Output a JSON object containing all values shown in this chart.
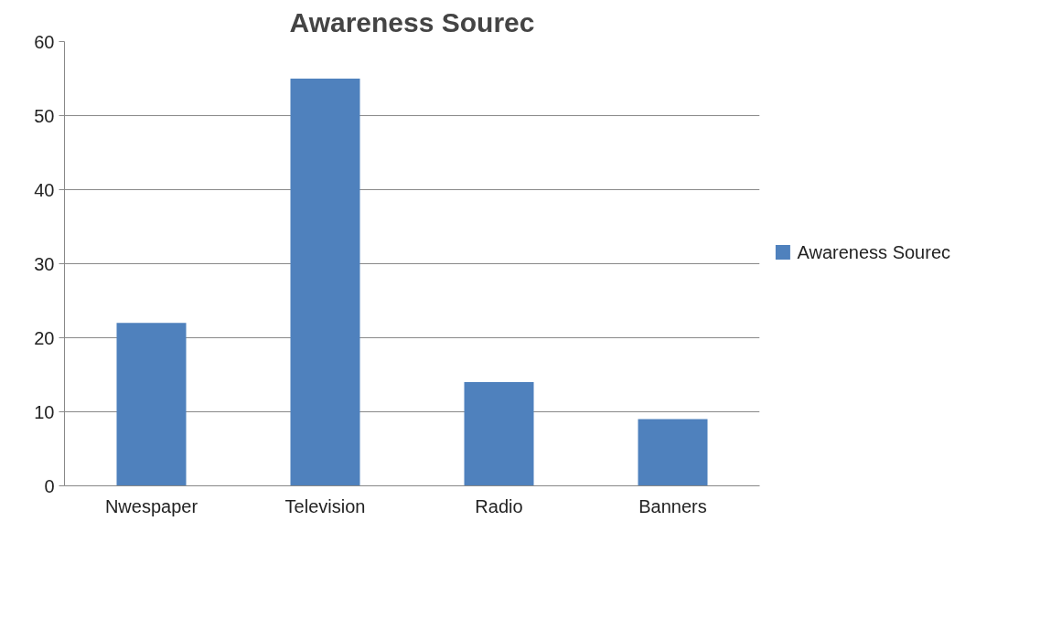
{
  "chart_data": {
    "type": "bar",
    "title": "Awareness Sourec",
    "categories": [
      "Nwespaper",
      "Television",
      "Radio",
      "Banners"
    ],
    "series": [
      {
        "name": "Awareness Sourec",
        "color": "#4f81bd",
        "values": [
          22,
          55,
          14,
          9
        ]
      }
    ],
    "ylim": [
      0,
      60
    ],
    "yticks": [
      0,
      10,
      20,
      30,
      40,
      50,
      60
    ],
    "grid": "y",
    "legend": "right"
  }
}
